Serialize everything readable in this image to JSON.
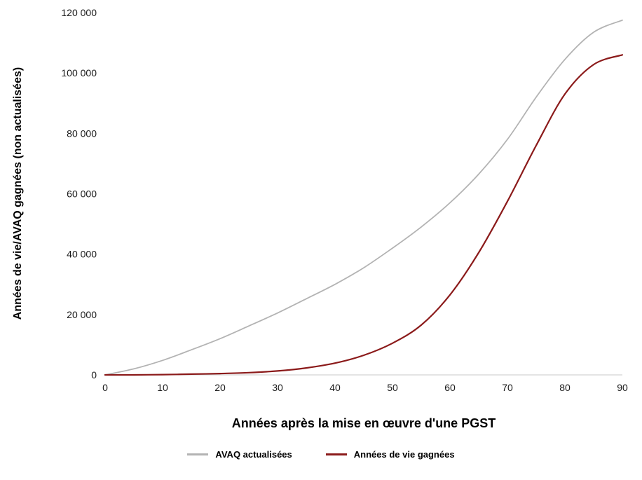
{
  "chart_data": {
    "type": "line",
    "x": [
      0,
      5,
      10,
      15,
      20,
      25,
      30,
      35,
      40,
      45,
      50,
      55,
      60,
      65,
      70,
      75,
      80,
      85,
      90
    ],
    "series": [
      {
        "name": "AVAQ actualisées",
        "color": "#b3b3b3",
        "values": [
          0,
          2000,
          4800,
          8300,
          12000,
          16200,
          20500,
          25200,
          30000,
          35500,
          42000,
          49000,
          57000,
          66500,
          78000,
          92000,
          104500,
          113500,
          117500
        ]
      },
      {
        "name": "Années de vie gagnées",
        "color": "#8b1a1a",
        "values": [
          0,
          0,
          100,
          250,
          450,
          750,
          1300,
          2300,
          3900,
          6500,
          10500,
          16500,
          26500,
          40500,
          57500,
          76000,
          93000,
          102800,
          106000
        ]
      }
    ],
    "title": "",
    "xlabel": "Années après la mise en œuvre d'une PGST",
    "ylabel": "Années de vie/AVAQ gagnées (non actualisées)",
    "xlim": [
      0,
      90
    ],
    "ylim": [
      0,
      120000
    ],
    "xticks": [
      0,
      10,
      20,
      30,
      40,
      50,
      60,
      70,
      80,
      90
    ],
    "xtick_labels": [
      "0",
      "10",
      "20",
      "30",
      "40",
      "50",
      "60",
      "70",
      "80",
      "90"
    ],
    "yticks": [
      0,
      20000,
      40000,
      60000,
      80000,
      100000,
      120000
    ],
    "ytick_labels": [
      "0",
      "20 000",
      "40 000",
      "60 000",
      "80 000",
      "100 000",
      "120 000"
    ],
    "grid": false,
    "legend_position": "bottom",
    "axis_color": "#c8c8c8",
    "text_color": "#000000"
  }
}
